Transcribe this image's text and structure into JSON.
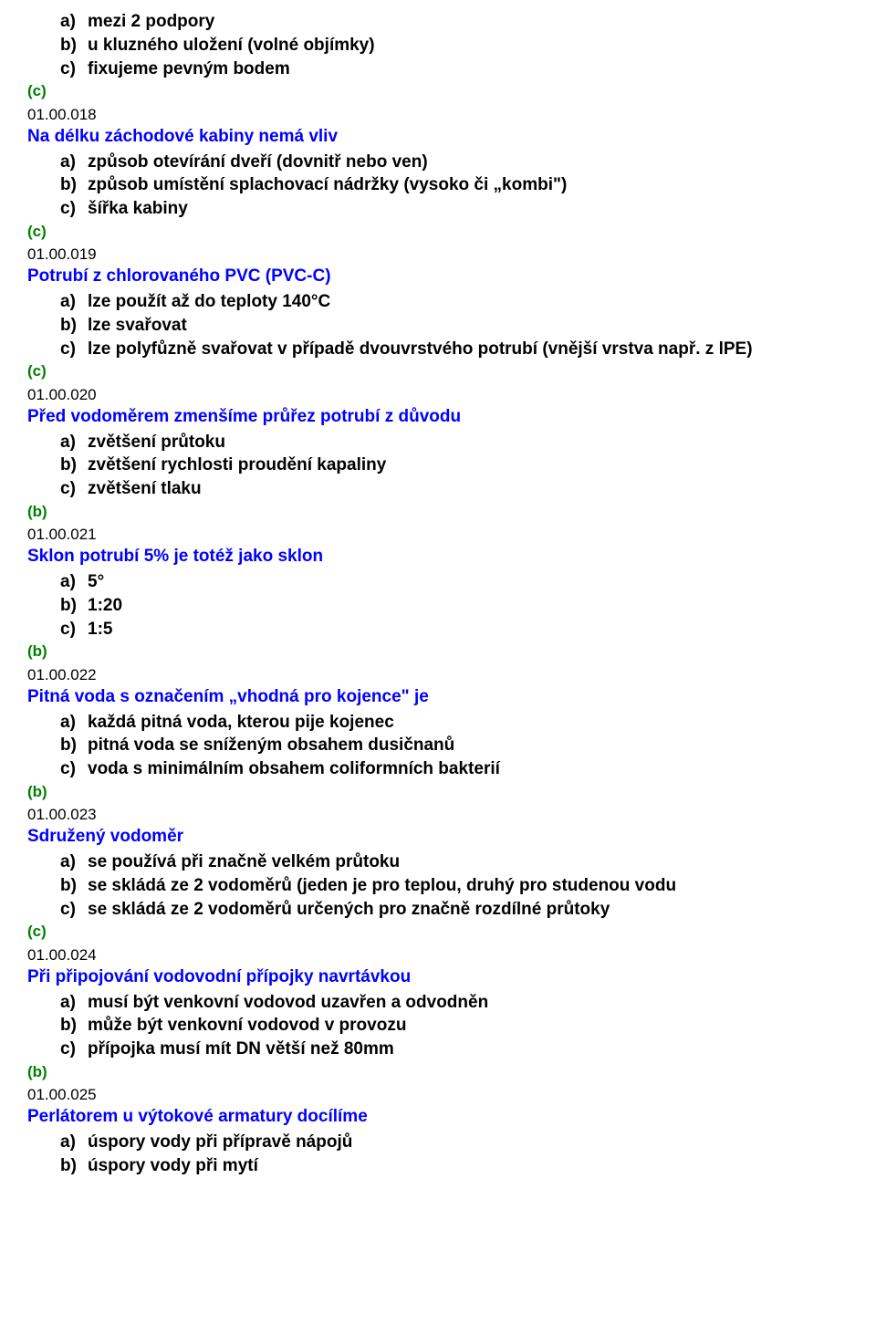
{
  "prelude": {
    "options": [
      {
        "marker": "a)",
        "text": "mezi 2 podpory"
      },
      {
        "marker": "b)",
        "text": "u kluzného uložení (volné objímky)"
      },
      {
        "marker": "c)",
        "text": "fixujeme pevným bodem"
      }
    ],
    "answer": "(c)"
  },
  "questions": [
    {
      "num": "01.00.018",
      "text": "Na délku záchodové kabiny nemá vliv",
      "options": [
        {
          "marker": "a)",
          "text": "způsob otevírání dveří (dovnitř nebo ven)"
        },
        {
          "marker": "b)",
          "text": "způsob umístění splachovací nádržky (vysoko či „kombi\")"
        },
        {
          "marker": "c)",
          "text": "šířka kabiny"
        }
      ],
      "answer": "(c)"
    },
    {
      "num": "01.00.019",
      "text": "Potrubí z chlorovaného PVC (PVC-C)",
      "options": [
        {
          "marker": "a)",
          "text": "lze použít až do teploty 140°C"
        },
        {
          "marker": "b)",
          "text": "lze svařovat"
        },
        {
          "marker": "c)",
          "text": "lze polyfůzně svařovat v případě dvouvrstvého potrubí (vnější vrstva např. z lPE)"
        }
      ],
      "answer": "(c)"
    },
    {
      "num": "01.00.020",
      "text": "Před vodoměrem zmenšíme průřez potrubí z důvodu",
      "options": [
        {
          "marker": "a)",
          "text": "zvětšení průtoku"
        },
        {
          "marker": "b)",
          "text": "zvětšení rychlosti proudění kapaliny"
        },
        {
          "marker": "c)",
          "text": "zvětšení tlaku"
        }
      ],
      "answer": "(b)"
    },
    {
      "num": "01.00.021",
      "text": "Sklon potrubí 5% je totéž jako sklon",
      "options": [
        {
          "marker": "a)",
          "text": "5°"
        },
        {
          "marker": "b)",
          "text": "1:20"
        },
        {
          "marker": "c)",
          "text": "1:5"
        }
      ],
      "answer": "(b)"
    },
    {
      "num": "01.00.022",
      "text": "Pitná voda s označením „vhodná pro kojence\" je",
      "options": [
        {
          "marker": "a)",
          "text": "každá pitná voda, kterou pije kojenec"
        },
        {
          "marker": "b)",
          "text": "pitná voda se sníženým obsahem dusičnanů"
        },
        {
          "marker": "c)",
          "text": "voda s minimálním obsahem coliformních bakterií"
        }
      ],
      "answer": "(b)"
    },
    {
      "num": "01.00.023",
      "text": "Sdružený vodoměr",
      "options": [
        {
          "marker": "a)",
          "text": "se používá při značně velkém průtoku"
        },
        {
          "marker": "b)",
          "text": "se skládá ze 2 vodoměrů (jeden je pro teplou, druhý pro studenou vodu"
        },
        {
          "marker": "c)",
          "text": "se skládá ze 2 vodoměrů určených pro značně rozdílné průtoky"
        }
      ],
      "answer": "(c)"
    },
    {
      "num": "01.00.024",
      "text": "Při připojování vodovodní přípojky navrtávkou",
      "options": [
        {
          "marker": "a)",
          "text": "musí být venkovní vodovod uzavřen a odvodněn"
        },
        {
          "marker": "b)",
          "text": "může být venkovní vodovod v provozu"
        },
        {
          "marker": "c)",
          "text": "přípojka musí mít DN větší než 80mm"
        }
      ],
      "answer": "(b)"
    },
    {
      "num": "01.00.025",
      "text": "Perlátorem u výtokové armatury docílíme",
      "options": [
        {
          "marker": "a)",
          "text": "úspory vody při přípravě nápojů"
        },
        {
          "marker": "b)",
          "text": "úspory vody při mytí"
        }
      ],
      "answer": null
    }
  ]
}
